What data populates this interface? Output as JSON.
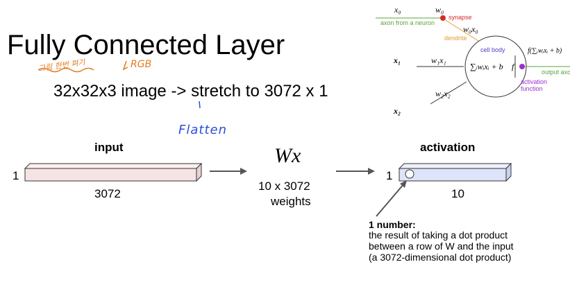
{
  "slide": {
    "title": "Fully Connected Layer",
    "subtitle": "32x32x3 image -> stretch to 3072 x 1"
  },
  "annotations": {
    "korean": "그림 한번 펴기",
    "rgb": "RGB",
    "flatten": "Flatten"
  },
  "diagram": {
    "input": {
      "title": "input",
      "rows": "1",
      "size": "3072"
    },
    "weights": {
      "symbol": "Wx",
      "line1": "10 x 3072",
      "line2": "weights"
    },
    "activation": {
      "title": "activation",
      "rows": "1",
      "size": "10"
    },
    "note": {
      "heading": "1 number:",
      "line1": "the result of taking a dot product",
      "line2": "between a row of W and the input",
      "line3": "(a 3072-dimensional dot product)"
    }
  },
  "neuron": {
    "x0": "x₀",
    "w0": "w₀",
    "synapse": "synapse",
    "axon_label": "axon from a neuron",
    "w0x0": "w₀x₀",
    "dendrite": "dendrite",
    "cell_body": "cell body",
    "x1": "x₁",
    "w1x1": "w₁x₁",
    "sum_expr": "∑ᵢwᵢxᵢ + b",
    "f": "f",
    "f_expr": "f(∑ᵢwᵢxᵢ + b)",
    "output_axon": "output axon",
    "activation_function": "activation",
    "activation_function2": "function",
    "w2x2": "w₂x₂",
    "x2": "x₂"
  },
  "colors": {
    "input_fill": "#f6e3e3",
    "activation_fill": "#dde3f8",
    "synapse": "#d42a2a",
    "dendrite": "#e69a2e",
    "axon": "#5aa33a",
    "activation_dot": "#9b2fd0",
    "cell_body": "#4e3fc9"
  }
}
